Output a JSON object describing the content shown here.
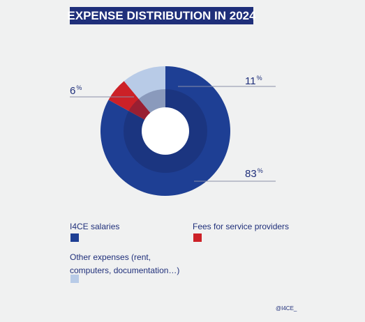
{
  "chart_data": {
    "type": "pie",
    "title": "EXPENSE DISTRIBUTION IN 2024",
    "slices": [
      {
        "label": "I4CE salaries",
        "value": 83,
        "color": "#1e3f94"
      },
      {
        "label": "Fees for service providers",
        "value": 6,
        "color": "#cc2127"
      },
      {
        "label": "Other expenses (rent, computers, documentation…)",
        "value": 11,
        "color": "#b8cbe7"
      }
    ],
    "value_labels": [
      {
        "value": "83",
        "unit": "%"
      },
      {
        "value": "6",
        "unit": "%"
      },
      {
        "value": "11",
        "unit": "%"
      }
    ],
    "legend": [
      {
        "line1": "I4CE salaries",
        "line2": "",
        "color": "#1e3f94"
      },
      {
        "line1": "Fees for service providers",
        "line2": "",
        "color": "#cc2127"
      },
      {
        "line1": "Other expenses (rent,",
        "line2": "computers, documentation…)",
        "color": "#b8cbe7"
      }
    ]
  },
  "credit": "@I4CE_"
}
